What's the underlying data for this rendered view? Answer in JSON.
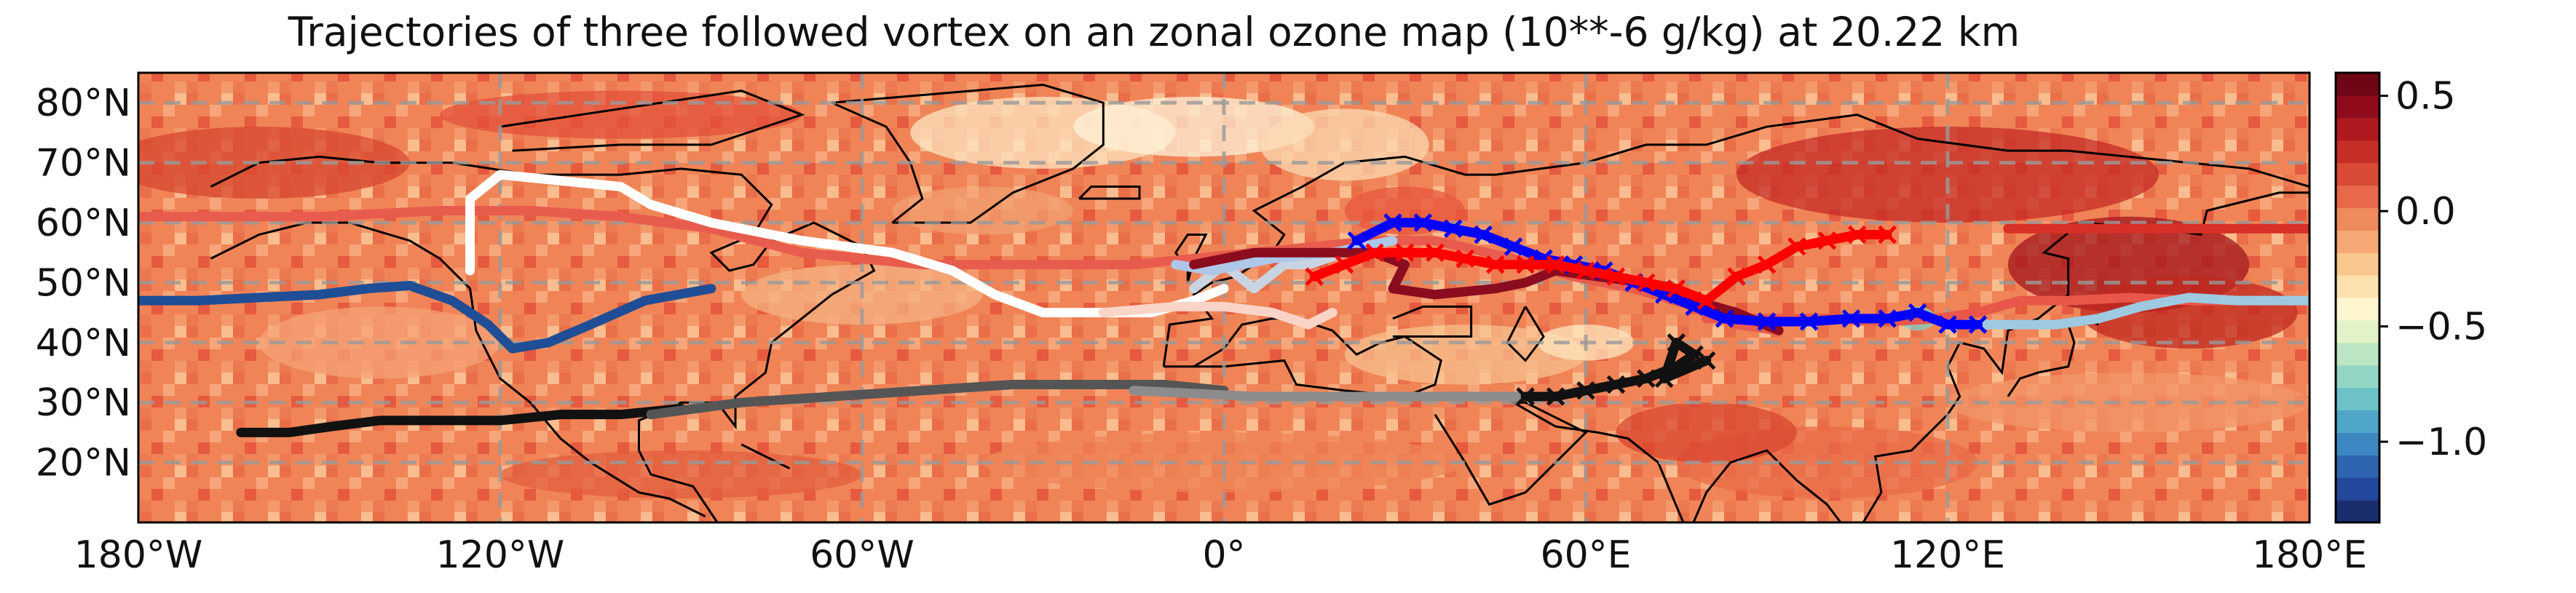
{
  "title": "Trajectories of three followed vortex on an zonal ozone map (10**-6 g/kg) at 20.22 km",
  "map": {
    "projection": "equirectangular",
    "lon_range": [
      -180,
      180
    ],
    "lat_range": [
      10,
      85
    ],
    "x_ticks": [
      {
        "lon": -180,
        "label": "180°W"
      },
      {
        "lon": -120,
        "label": "120°W"
      },
      {
        "lon": -60,
        "label": "60°W"
      },
      {
        "lon": 0,
        "label": "0°"
      },
      {
        "lon": 60,
        "label": "60°E"
      },
      {
        "lon": 120,
        "label": "120°E"
      },
      {
        "lon": 180,
        "label": "180°E"
      }
    ],
    "y_ticks": [
      {
        "lat": 80,
        "label": "80°N"
      },
      {
        "lat": 70,
        "label": "70°N"
      },
      {
        "lat": 60,
        "label": "60°N"
      },
      {
        "lat": 50,
        "label": "50°N"
      },
      {
        "lat": 40,
        "label": "40°N"
      },
      {
        "lat": 30,
        "label": "30°N"
      },
      {
        "lat": 20,
        "label": "20°N"
      }
    ],
    "gridlines": "dashed-grey",
    "coastlines": "black"
  },
  "colorbar": {
    "colormap": "RdYlBu_r",
    "range": [
      -1.35,
      0.6
    ],
    "ticks": [
      {
        "value": 0.5,
        "label": "0.5"
      },
      {
        "value": 0.0,
        "label": "0.0"
      },
      {
        "value": -0.5,
        "label": "−0.5"
      },
      {
        "value": -1.0,
        "label": "−1.0"
      }
    ],
    "colors": [
      "#1a2e6e",
      "#23479b",
      "#2f65b0",
      "#3d88c2",
      "#4ea7c9",
      "#6cc2c7",
      "#93d5c5",
      "#bce6c3",
      "#e3f3c8",
      "#fff6cf",
      "#fde2b0",
      "#f9c88e",
      "#f5a874",
      "#ef8a5c",
      "#e7694a",
      "#d94b36",
      "#c62f27",
      "#ae1a1f",
      "#8f0b1c",
      "#6e0616"
    ]
  },
  "chart_data": {
    "type": "map-trajectories",
    "title": "Trajectories of three followed vortex on an zonal ozone map (10**-6 g/kg) at 20.22 km",
    "x_axis": "longitude",
    "y_axis": "latitude",
    "trajectories": [
      {
        "color": "#e8574a",
        "marker": "line",
        "points": [
          [
            180,
            47
          ],
          [
            170,
            47
          ],
          [
            160,
            47
          ],
          [
            150,
            47.5
          ],
          [
            140,
            47
          ],
          [
            132,
            47
          ],
          [
            125,
            45
          ],
          [
            118,
            44
          ],
          [
            110,
            43.5
          ],
          [
            100,
            44
          ],
          [
            90,
            44
          ],
          [
            80,
            44
          ]
        ]
      },
      {
        "color": "#9ecae1",
        "marker": "line",
        "points": [
          [
            180,
            47
          ],
          [
            175,
            47
          ],
          [
            168,
            47
          ],
          [
            160,
            47.5
          ],
          [
            152,
            46
          ],
          [
            145,
            44
          ],
          [
            138,
            43
          ],
          [
            130,
            43
          ],
          [
            125,
            43
          ]
        ]
      },
      {
        "color": "#1f4e96",
        "marker": "line",
        "points": [
          [
            -180,
            47
          ],
          [
            -170,
            47
          ],
          [
            -160,
            47.5
          ],
          [
            -150,
            48
          ],
          [
            -142,
            49
          ],
          [
            -135,
            49.5
          ],
          [
            -128,
            47
          ],
          [
            -122,
            43
          ],
          [
            -118,
            39
          ],
          [
            -112,
            40
          ],
          [
            -105,
            43
          ],
          [
            -96,
            47
          ],
          [
            -85,
            49
          ]
        ]
      },
      {
        "color": "#e85c4e",
        "marker": "line",
        "points": [
          [
            -180,
            61
          ],
          [
            -165,
            61
          ],
          [
            -150,
            61
          ],
          [
            -130,
            62
          ],
          [
            -115,
            62
          ],
          [
            -100,
            61
          ],
          [
            -85,
            59
          ],
          [
            -70,
            55
          ],
          [
            -50,
            53
          ],
          [
            -30,
            53
          ],
          [
            -15,
            53
          ],
          [
            -5,
            54
          ],
          [
            5,
            55
          ],
          [
            15,
            56
          ],
          [
            25,
            57
          ],
          [
            35,
            57
          ],
          [
            48,
            54
          ],
          [
            58,
            51
          ],
          [
            68,
            49
          ],
          [
            78,
            46
          ],
          [
            85,
            43
          ],
          [
            92,
            42
          ]
        ]
      },
      {
        "color": "#d73027",
        "marker": "line",
        "points": [
          [
            180,
            59
          ],
          [
            170,
            59
          ],
          [
            160,
            59
          ],
          [
            150,
            59
          ],
          [
            140,
            59
          ],
          [
            130,
            59
          ]
        ]
      },
      {
        "color": "#ffffff",
        "marker": "line",
        "points": [
          [
            -125,
            52
          ],
          [
            -125,
            58
          ],
          [
            -125,
            64
          ],
          [
            -120,
            68
          ],
          [
            -110,
            67
          ],
          [
            -100,
            66
          ],
          [
            -95,
            63
          ],
          [
            -85,
            60
          ],
          [
            -70,
            57
          ],
          [
            -55,
            55
          ],
          [
            -45,
            52
          ],
          [
            -38,
            48
          ],
          [
            -30,
            45
          ],
          [
            -20,
            45
          ],
          [
            -12,
            45
          ],
          [
            -5,
            47
          ],
          [
            0,
            49
          ]
        ]
      },
      {
        "color": "#fbd4c8",
        "marker": "line",
        "points": [
          [
            -20,
            45
          ],
          [
            -8,
            46
          ],
          [
            0,
            46
          ],
          [
            8,
            45
          ],
          [
            14,
            43
          ],
          [
            18,
            45
          ]
        ]
      },
      {
        "color": "#c9d4e3",
        "marker": "line",
        "points": [
          [
            -5,
            49
          ],
          [
            0,
            53
          ],
          [
            5,
            49
          ],
          [
            10,
            53
          ],
          [
            14,
            53
          ],
          [
            20,
            55
          ]
        ]
      },
      {
        "color": "#aec7e8",
        "marker": "line",
        "points": [
          [
            -8,
            53
          ],
          [
            -2,
            52
          ],
          [
            8,
            54
          ],
          [
            18,
            55
          ],
          [
            28,
            57
          ]
        ]
      },
      {
        "color": "#8b0c1f",
        "marker": "line",
        "points": [
          [
            -5,
            53
          ],
          [
            5,
            55
          ],
          [
            15,
            55
          ],
          [
            25,
            55
          ],
          [
            30,
            53
          ],
          [
            28,
            49
          ],
          [
            35,
            48
          ],
          [
            45,
            49
          ],
          [
            50,
            50
          ],
          [
            55,
            52
          ],
          [
            62,
            51
          ],
          [
            70,
            50
          ],
          [
            78,
            47
          ],
          [
            85,
            45
          ],
          [
            92,
            42
          ]
        ]
      },
      {
        "color": "#0000ff",
        "marker": "x",
        "points": [
          [
            22,
            57
          ],
          [
            28,
            60
          ],
          [
            33,
            60
          ],
          [
            38,
            59
          ],
          [
            43,
            58
          ],
          [
            48,
            56
          ],
          [
            53,
            54
          ],
          [
            58,
            53
          ],
          [
            63,
            52
          ],
          [
            68,
            50
          ],
          [
            73,
            48
          ],
          [
            78,
            46
          ],
          [
            83,
            44
          ],
          [
            90,
            43.5
          ],
          [
            97,
            43.5
          ],
          [
            104,
            44
          ],
          [
            110,
            44
          ],
          [
            115,
            45
          ],
          [
            120,
            43
          ],
          [
            125,
            43
          ]
        ]
      },
      {
        "color": "#ff0000",
        "marker": "x",
        "points": [
          [
            15,
            51
          ],
          [
            20,
            53
          ],
          [
            25,
            55
          ],
          [
            30,
            55
          ],
          [
            35,
            55
          ],
          [
            40,
            54
          ],
          [
            45,
            53
          ],
          [
            50,
            53
          ],
          [
            55,
            53
          ],
          [
            60,
            52
          ],
          [
            65,
            51
          ],
          [
            70,
            50
          ],
          [
            75,
            49
          ],
          [
            80,
            47
          ],
          [
            85,
            51
          ],
          [
            90,
            53
          ],
          [
            95,
            56
          ],
          [
            100,
            57
          ],
          [
            105,
            58
          ],
          [
            110,
            58
          ]
        ]
      },
      {
        "color": "#111111",
        "marker": "line",
        "points": [
          [
            -163,
            25
          ],
          [
            -155,
            25
          ],
          [
            -148,
            26
          ],
          [
            -140,
            27
          ],
          [
            -130,
            27
          ],
          [
            -120,
            27
          ],
          [
            -110,
            28
          ],
          [
            -100,
            28
          ],
          [
            -90,
            29
          ]
        ]
      },
      {
        "color": "#555555",
        "marker": "line",
        "points": [
          [
            -95,
            28
          ],
          [
            -80,
            30
          ],
          [
            -65,
            31
          ],
          [
            -50,
            32
          ],
          [
            -35,
            33
          ],
          [
            -20,
            33
          ],
          [
            -10,
            33
          ],
          [
            0,
            32
          ]
        ]
      },
      {
        "color": "#8c8c8c",
        "marker": "line",
        "points": [
          [
            -15,
            32
          ],
          [
            -5,
            31.5
          ],
          [
            5,
            31
          ],
          [
            15,
            31
          ],
          [
            25,
            31
          ],
          [
            35,
            31
          ],
          [
            45,
            31
          ],
          [
            50,
            31
          ]
        ]
      },
      {
        "color": "#111111",
        "marker": "x",
        "points": [
          [
            50,
            31
          ],
          [
            55,
            31
          ],
          [
            60,
            32
          ],
          [
            65,
            33
          ],
          [
            70,
            34
          ],
          [
            75,
            36
          ],
          [
            78,
            38
          ],
          [
            75,
            40
          ],
          [
            73,
            34
          ],
          [
            80,
            37
          ]
        ]
      }
    ]
  }
}
